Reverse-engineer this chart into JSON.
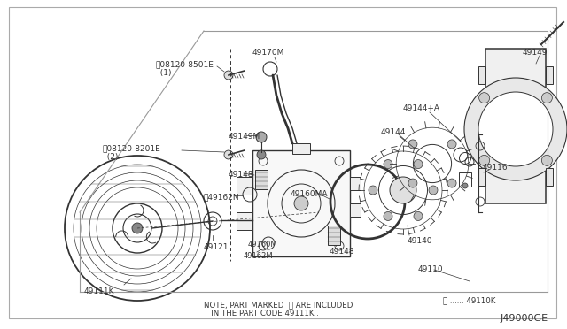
{
  "bg_color": "#ffffff",
  "line_color": "#333333",
  "diagram_code": "J49000GE",
  "note_text": "NOTE, PART MARKED  Ⓑ ARE INCLUDED\n    IN THE PART CODE 49111K .",
  "legend_text": "⒢ ...... 49110K",
  "figsize": [
    6.4,
    3.72
  ],
  "dpi": 100
}
